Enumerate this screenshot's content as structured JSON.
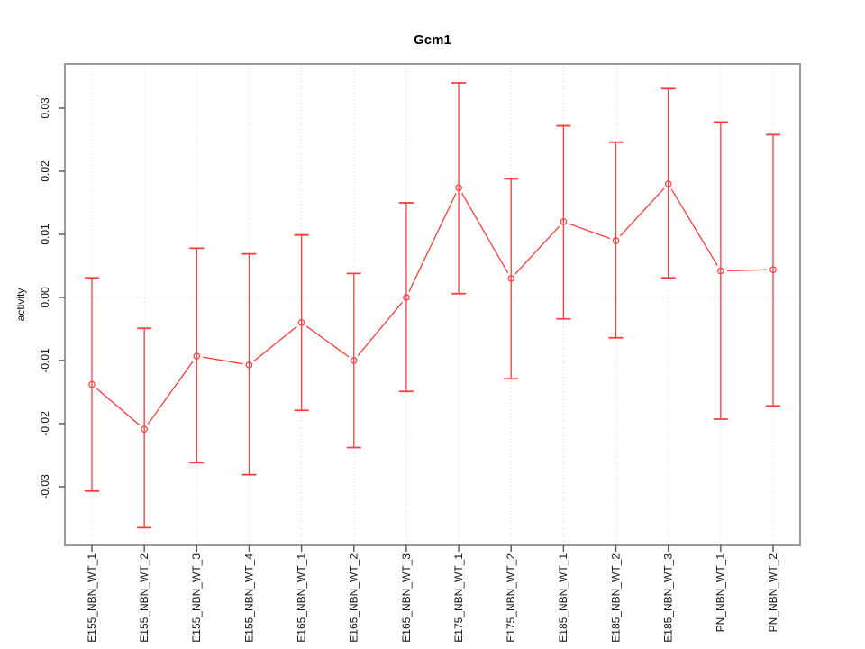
{
  "chart_data": {
    "type": "line",
    "title": "Gcm1",
    "ylabel": "activity",
    "xlabel": "",
    "legend": "none",
    "grid": "vertical dotted line at each category; horizontal dotted line at y=0",
    "categories": [
      "E155_NBN_WT_1",
      "E155_NBN_WT_2",
      "E155_NBN_WT_3",
      "E155_NBN_WT_4",
      "E165_NBN_WT_1",
      "E165_NBN_WT_2",
      "E165_NBN_WT_3",
      "E175_NBN_WT_1",
      "E175_NBN_WT_2",
      "E185_NBN_WT_1",
      "E185_NBN_WT_2",
      "E185_NBN_WT_3",
      "PN_NBN_WT_1",
      "PN_NBN_WT_2"
    ],
    "series": [
      {
        "name": "activity",
        "values": [
          -0.0138,
          -0.0209,
          -0.0093,
          -0.0107,
          -0.004,
          -0.01,
          0.0,
          0.0174,
          0.003,
          0.012,
          0.009,
          0.018,
          0.0042,
          0.0044
        ],
        "error_upper": [
          0.0031,
          -0.0049,
          0.0078,
          0.0069,
          0.0099,
          0.0038,
          0.015,
          0.034,
          0.0188,
          0.0272,
          0.0246,
          0.0331,
          0.0278,
          0.0258
        ],
        "error_lower": [
          -0.0307,
          -0.0365,
          -0.0262,
          -0.0281,
          -0.0179,
          -0.0238,
          -0.0149,
          0.0006,
          -0.0129,
          -0.0034,
          -0.0064,
          0.0031,
          -0.0193,
          -0.0172
        ]
      }
    ],
    "ytick_labels": [
      "-0.03",
      "-0.02",
      "-0.01",
      "0.00",
      "0.01",
      "0.02",
      "0.03"
    ],
    "ytick_values": [
      -0.03,
      -0.02,
      -0.01,
      0.0,
      0.01,
      0.02,
      0.03
    ],
    "ylim": [
      -0.0393,
      0.037
    ],
    "point_style": "open-circle",
    "colors": {
      "series": "#ff3b3b",
      "frame": "#999999",
      "grid": "#dadada",
      "tick": "#555555",
      "text": "#111111",
      "background": "#ffffff"
    }
  }
}
